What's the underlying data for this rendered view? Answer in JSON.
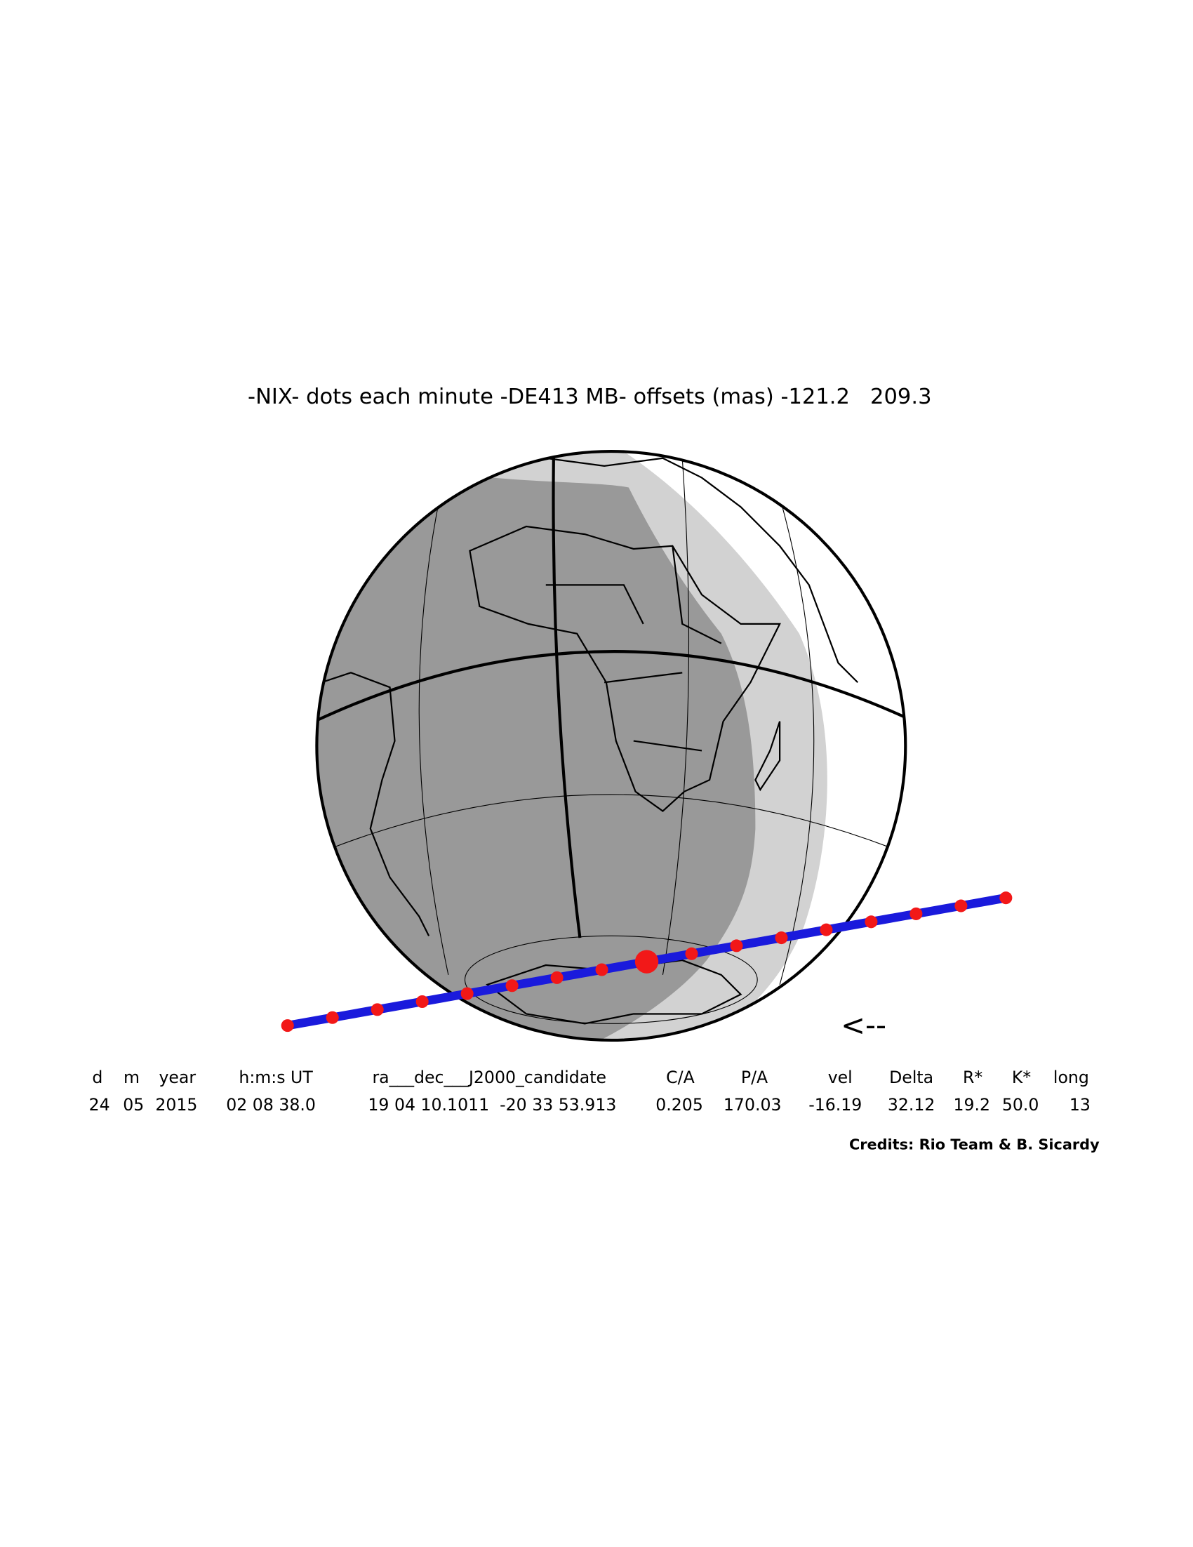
{
  "title": "-NIX- dots each minute -DE413 MB- offsets (mas) -121.2   209.3",
  "direction": "<--",
  "table": {
    "headers": [
      "d",
      "m",
      "year",
      "h:m:s UT",
      "ra___dec___J2000_candidate",
      "C/A",
      "P/A",
      "vel",
      "Delta",
      "R*",
      "K*",
      "long"
    ],
    "values": [
      "24",
      "05",
      "2015",
      "02 08 38.0",
      "19 04 10.1011  -20 33 53.913",
      "0.205",
      "170.03",
      "-16.19",
      "32.12",
      "19.2",
      "50.0",
      "13"
    ]
  },
  "credits": "Credits: Rio Team & B. Sicardy"
}
